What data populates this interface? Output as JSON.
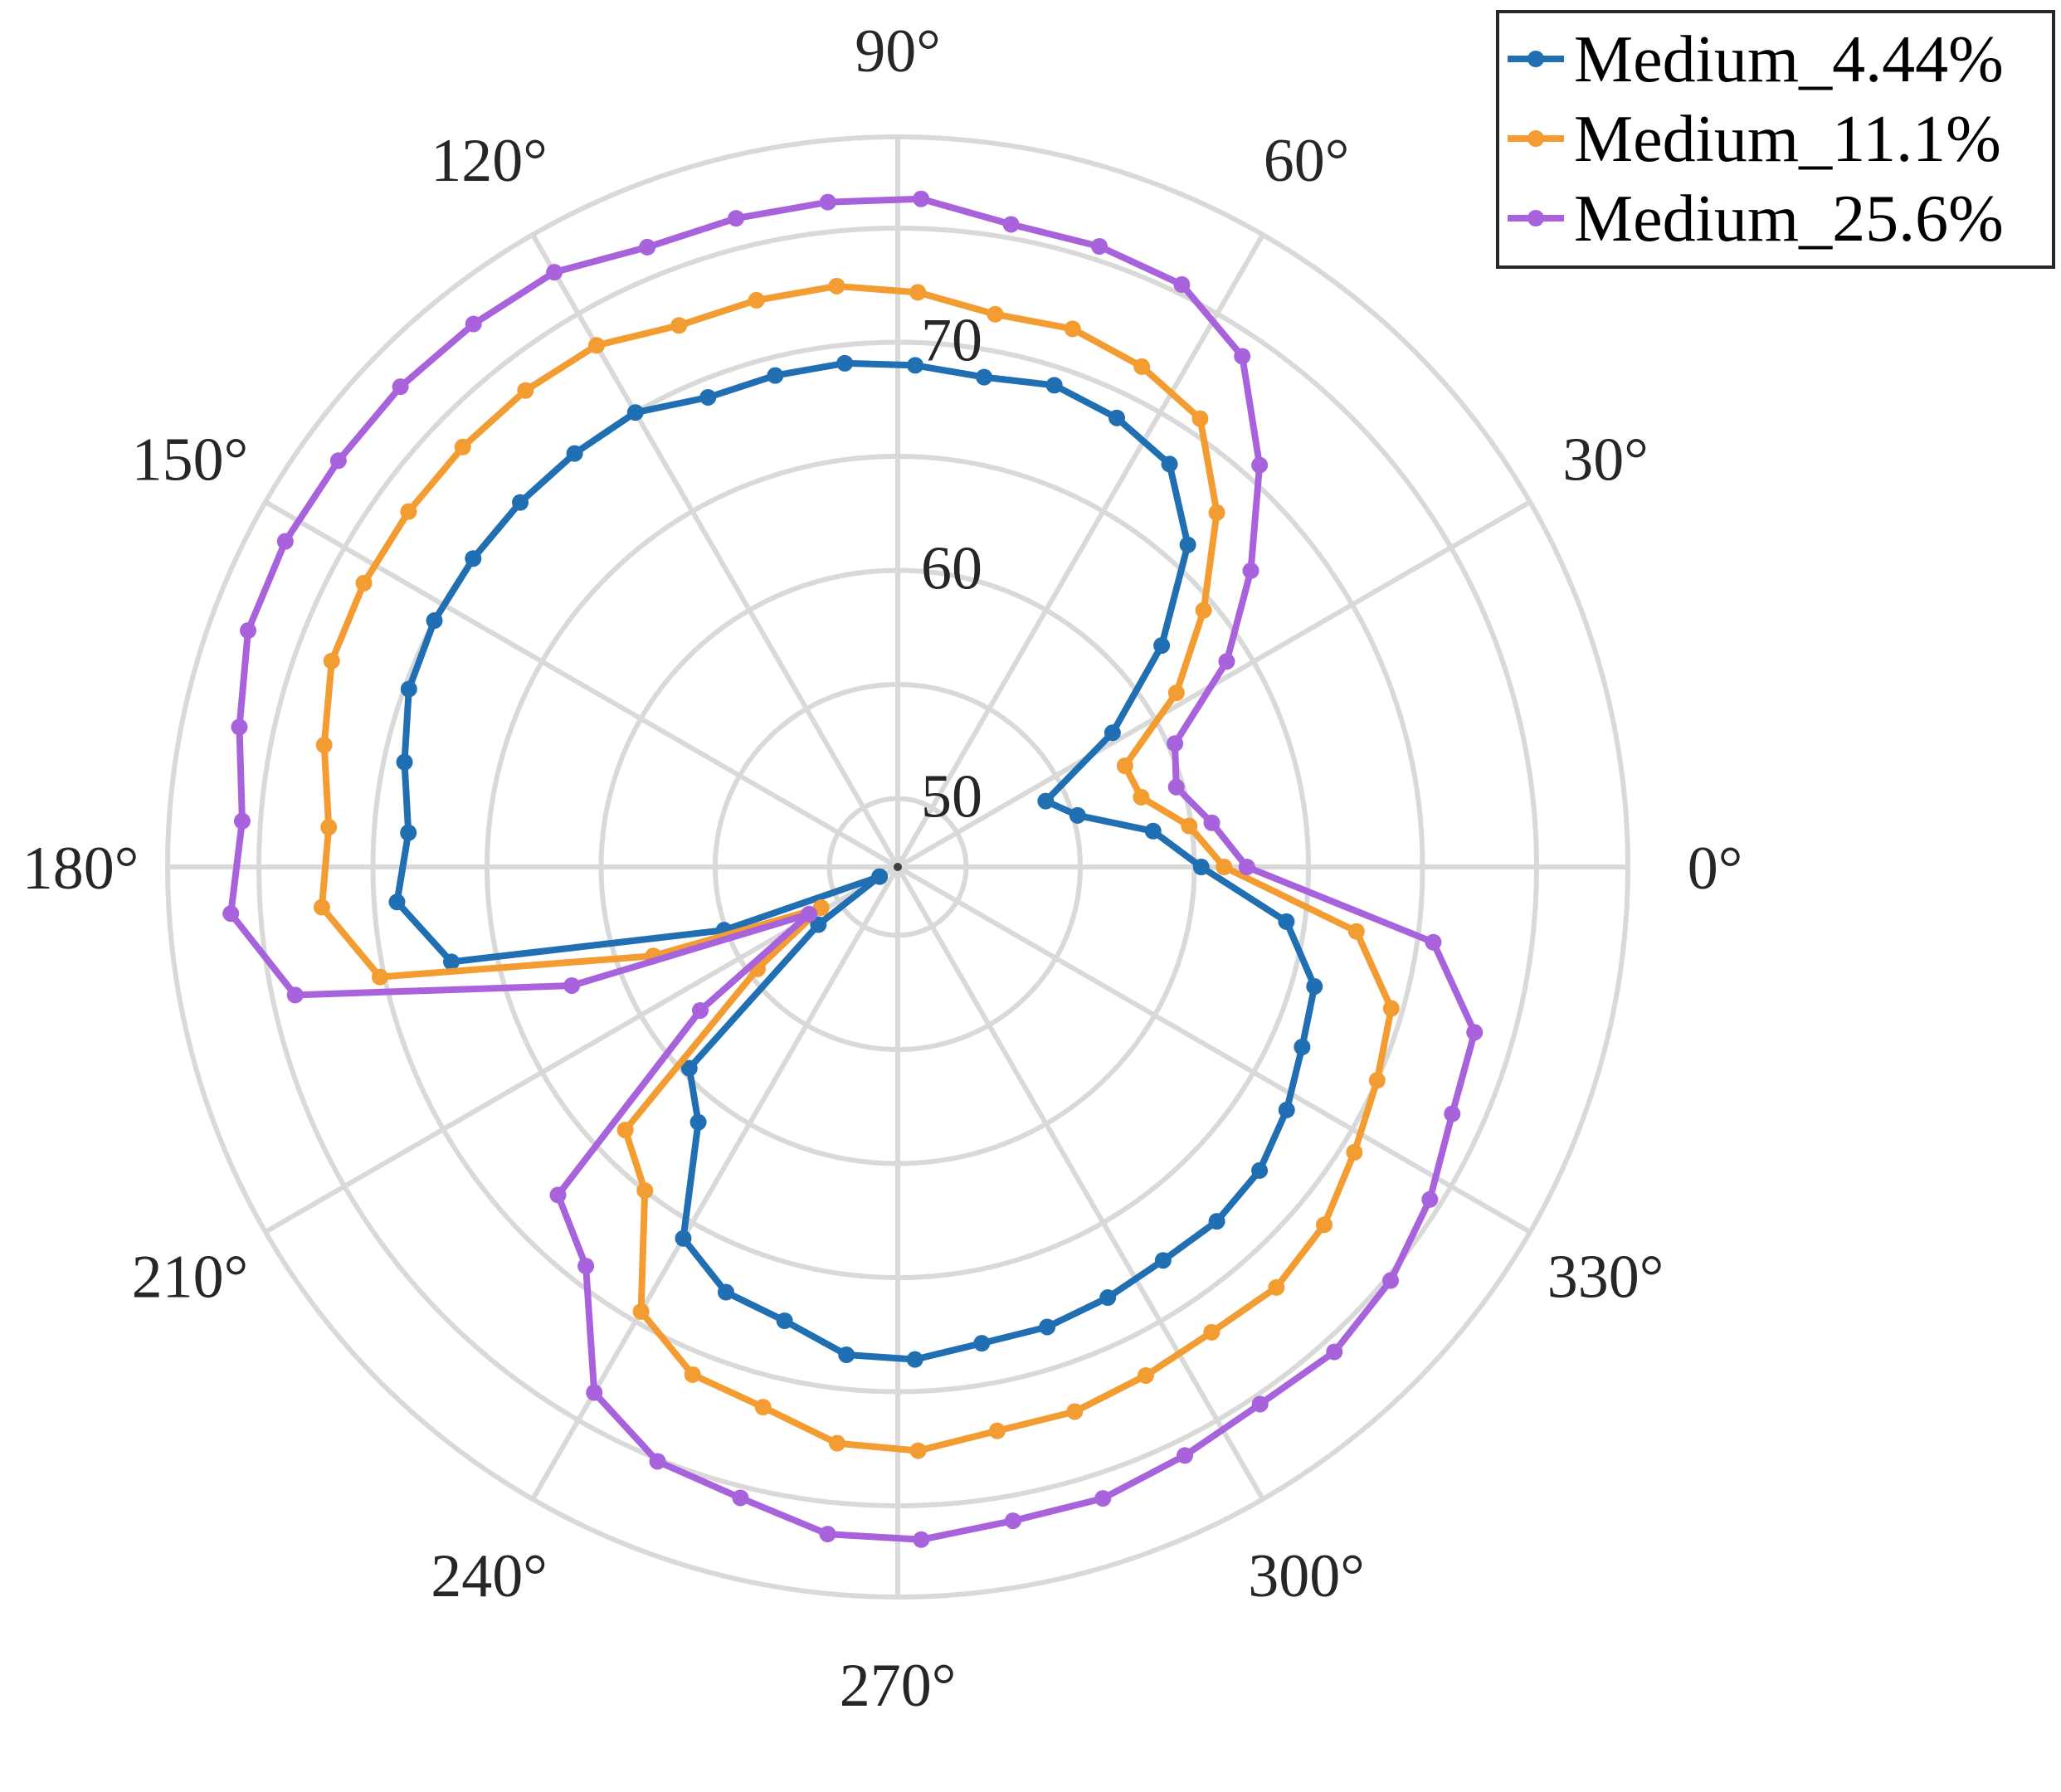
{
  "chart_data": {
    "type": "line",
    "projection": "polar",
    "theta_unit": "degrees",
    "theta_ticks": [
      "0°",
      "30°",
      "60°",
      "90°",
      "120°",
      "150°",
      "180°",
      "210°",
      "240°",
      "270°",
      "300°",
      "330°"
    ],
    "r_ticks": [
      "50",
      "60",
      "70"
    ],
    "rlim": [
      47,
      79
    ],
    "grid": true,
    "legend": "top-right",
    "series": [
      {
        "name": "Medium_4.44%",
        "color": "#1f6fb2",
        "theta": [
          0,
          8,
          16,
          24,
          32,
          40,
          48,
          56,
          64,
          72,
          80,
          88,
          96,
          104,
          112,
          120,
          128,
          136,
          144,
          152,
          160,
          168,
          176,
          184,
          192,
          200,
          208,
          216,
          224,
          232,
          240,
          248,
          256,
          264,
          272,
          280,
          288,
          296,
          304,
          312,
          320,
          328,
          336,
          344,
          352,
          360
        ],
        "r": [
          60.3,
          58.3,
          55.2,
          54.1,
          58.1,
          62.1,
          66.0,
          68.3,
          68.9,
          69.2,
          68.8,
          69.0,
          69.2,
          69.2,
          69.2,
          70.0,
          70.0,
          70.0,
          70.0,
          70.0,
          69.8,
          69.1,
          68.5,
          69.0,
          67.0,
          55.1,
          47.9,
          51.3,
          59.7,
          61.2,
          65.8,
          67.1,
          67.5,
          68.5,
          68.6,
          68.2,
          68.2,
          68.0,
          67.8,
          67.9,
          67.7,
          67.1,
          66.4,
          66.0,
          64.2,
          60.3
        ]
      },
      {
        "name": "Medium_11.1%",
        "color": "#f39c32",
        "theta": [
          0,
          8,
          16,
          24,
          32,
          40,
          48,
          56,
          64,
          72,
          80,
          88,
          96,
          104,
          112,
          120,
          128,
          136,
          144,
          152,
          160,
          168,
          176,
          184,
          192,
          200,
          208,
          216,
          224,
          232,
          240,
          248,
          256,
          264,
          272,
          280,
          288,
          296,
          304,
          312,
          320,
          328,
          336,
          344,
          352,
          360
        ],
        "r": [
          61.3,
          59.9,
          58.1,
          57.9,
          61.4,
          64.5,
          67.9,
          70.7,
          71.4,
          71.8,
          71.6,
          72.2,
          72.6,
          72.6,
          72.6,
          73.4,
          73.5,
          73.5,
          73.5,
          73.5,
          73.4,
          72.7,
          72.0,
          72.3,
          70.2,
          58.4,
          50.8,
          54.6,
          63.6,
          65.0,
          69.5,
          71.0,
          71.4,
          72.4,
          72.6,
          72.1,
          72.1,
          71.8,
          71.6,
          71.8,
          71.4,
          70.6,
          70.0,
          69.5,
          67.3,
          61.3
        ]
      },
      {
        "name": "Medium_25.6%",
        "color": "#a862db",
        "theta": [
          0,
          8,
          16,
          24,
          32,
          40,
          48,
          56,
          64,
          72,
          80,
          88,
          96,
          104,
          112,
          120,
          128,
          136,
          144,
          152,
          160,
          168,
          176,
          184,
          192,
          200,
          208,
          216,
          224,
          232,
          240,
          248,
          256,
          264,
          272,
          280,
          288,
          296,
          304,
          312,
          320,
          328,
          336,
          344,
          352,
          360
        ],
        "r": [
          62.3,
          60.9,
          59.7,
          60.3,
          64.0,
          67.2,
          70.7,
          74.0,
          75.4,
          75.6,
          75.6,
          76.3,
          76.3,
          76.3,
          76.3,
          77.1,
          77.2,
          77.3,
          77.3,
          77.4,
          77.3,
          76.5,
          75.8,
          76.3,
          74.0,
          62.2,
          51.4,
          57.7,
          67.7,
          69.2,
          73.6,
          75.1,
          75.5,
          76.4,
          76.5,
          76.1,
          76.1,
          75.7,
          75.4,
          75.6,
          75.2,
          74.5,
          73.6,
          73.3,
          70.7,
          62.3
        ]
      }
    ]
  }
}
